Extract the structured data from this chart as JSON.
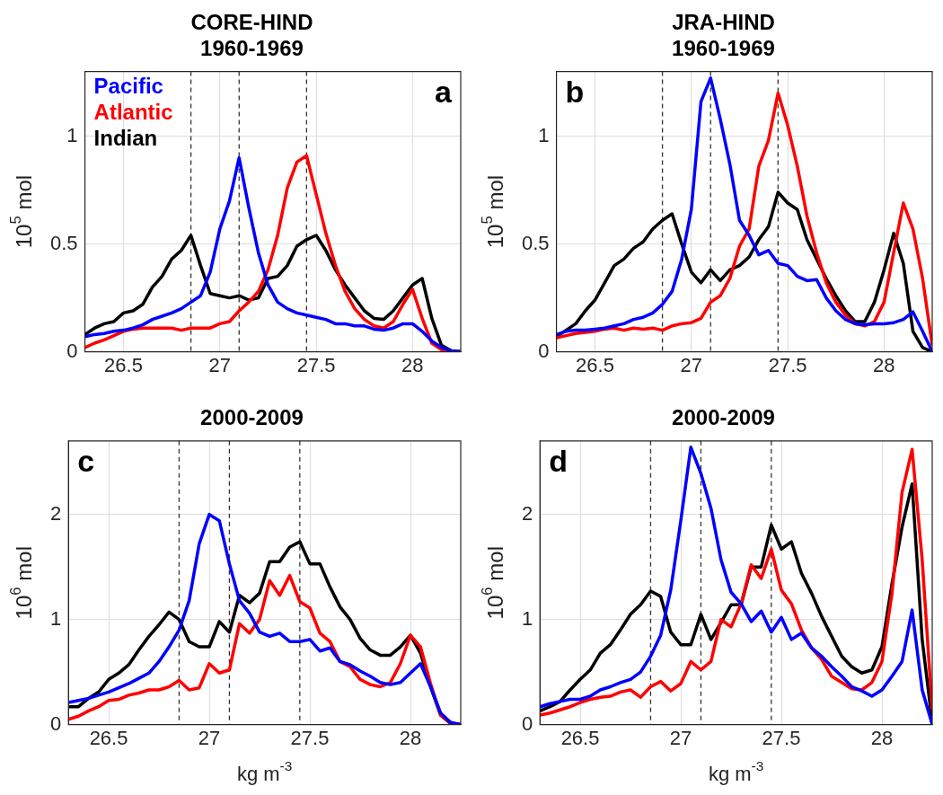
{
  "chart_data": [
    {
      "type": "line",
      "title": "CORE-HIND\n1960-1969",
      "ylabel": "10$^{5}$ mol",
      "annotations": [
        "a"
      ],
      "legend": "top left",
      "grid": true,
      "xlim": [
        26.3,
        28.25
      ],
      "xticks": [
        26.5,
        27,
        27.5,
        28
      ],
      "ylim": [
        0,
        1.3
      ],
      "yticks": [
        0,
        0.5,
        1
      ],
      "x": [
        26.3,
        26.35,
        26.4,
        26.45,
        26.5,
        26.55,
        26.6,
        26.65,
        26.7,
        26.75,
        26.8,
        26.85,
        26.9,
        26.95,
        27,
        27.05,
        27.1,
        27.15,
        27.2,
        27.25,
        27.3,
        27.35,
        27.4,
        27.45,
        27.5,
        27.55,
        27.6,
        27.65,
        27.7,
        27.75,
        27.8,
        27.85,
        27.9,
        27.95,
        28,
        28.05,
        28.1,
        28.15,
        28.2,
        28.25
      ],
      "ref_lines": [
        {
          "axis": "x",
          "value": 26.85,
          "color": "#333333",
          "line_style": "dashed"
        },
        {
          "axis": "x",
          "value": 27.1,
          "color": "#333333",
          "line_style": "dashed"
        },
        {
          "axis": "x",
          "value": 27.45,
          "color": "#333333",
          "line_style": "dashed"
        }
      ],
      "series": [
        {
          "name": "Pacific",
          "color": "#0000ff",
          "values": [
            0.07,
            0.08,
            0.085,
            0.095,
            0.1,
            0.11,
            0.125,
            0.15,
            0.165,
            0.18,
            0.2,
            0.23,
            0.26,
            0.37,
            0.57,
            0.7,
            0.9,
            0.67,
            0.46,
            0.31,
            0.23,
            0.2,
            0.18,
            0.17,
            0.16,
            0.15,
            0.13,
            0.13,
            0.12,
            0.12,
            0.105,
            0.1,
            0.11,
            0.13,
            0.13,
            0.095,
            0.05,
            0.02,
            0.005,
            0
          ]
        },
        {
          "name": "Atlantic",
          "color": "#ff0000",
          "values": [
            0.02,
            0.04,
            0.055,
            0.075,
            0.095,
            0.105,
            0.11,
            0.11,
            0.11,
            0.11,
            0.1,
            0.11,
            0.11,
            0.11,
            0.13,
            0.14,
            0.19,
            0.23,
            0.28,
            0.38,
            0.54,
            0.76,
            0.88,
            0.91,
            0.73,
            0.55,
            0.4,
            0.28,
            0.2,
            0.15,
            0.12,
            0.11,
            0.14,
            0.22,
            0.29,
            0.155,
            0.04,
            0.01,
            0,
            0
          ]
        },
        {
          "name": "Indian",
          "color": "#000000",
          "values": [
            0.08,
            0.11,
            0.13,
            0.14,
            0.18,
            0.19,
            0.22,
            0.3,
            0.35,
            0.43,
            0.47,
            0.54,
            0.4,
            0.27,
            0.26,
            0.25,
            0.26,
            0.24,
            0.25,
            0.34,
            0.35,
            0.4,
            0.49,
            0.52,
            0.54,
            0.47,
            0.38,
            0.31,
            0.25,
            0.19,
            0.155,
            0.15,
            0.19,
            0.25,
            0.31,
            0.34,
            0.155,
            0.03,
            0.005,
            0
          ]
        }
      ]
    },
    {
      "type": "line",
      "title": "JRA-HIND\n1960-1969",
      "ylabel": "10$^{5}$ mol",
      "annotations": [
        "b"
      ],
      "grid": true,
      "xlim": [
        26.3,
        28.25
      ],
      "xticks": [
        26.5,
        27,
        27.5,
        28
      ],
      "ylim": [
        0,
        1.3
      ],
      "yticks": [
        0,
        0.5,
        1
      ],
      "x": [
        26.3,
        26.35,
        26.4,
        26.45,
        26.5,
        26.55,
        26.6,
        26.65,
        26.7,
        26.75,
        26.8,
        26.85,
        26.9,
        26.95,
        27,
        27.05,
        27.1,
        27.15,
        27.2,
        27.25,
        27.3,
        27.35,
        27.4,
        27.45,
        27.5,
        27.55,
        27.6,
        27.65,
        27.7,
        27.75,
        27.8,
        27.85,
        27.9,
        27.95,
        28,
        28.05,
        28.1,
        28.15,
        28.2,
        28.25
      ],
      "ref_lines": [
        {
          "axis": "x",
          "value": 26.85,
          "color": "#333333",
          "line_style": "dashed"
        },
        {
          "axis": "x",
          "value": 27.1,
          "color": "#333333",
          "line_style": "dashed"
        },
        {
          "axis": "x",
          "value": 27.45,
          "color": "#333333",
          "line_style": "dashed"
        }
      ],
      "series": [
        {
          "color": "#0000ff",
          "values": [
            0.08,
            0.095,
            0.1,
            0.1,
            0.105,
            0.11,
            0.12,
            0.13,
            0.15,
            0.16,
            0.18,
            0.22,
            0.28,
            0.43,
            0.66,
            1.16,
            1.27,
            1.08,
            0.87,
            0.61,
            0.54,
            0.45,
            0.47,
            0.41,
            0.4,
            0.35,
            0.33,
            0.335,
            0.25,
            0.19,
            0.15,
            0.13,
            0.125,
            0.13,
            0.13,
            0.135,
            0.15,
            0.185,
            0.095,
            0
          ]
        },
        {
          "color": "#ff0000",
          "values": [
            0.065,
            0.075,
            0.085,
            0.09,
            0.095,
            0.105,
            0.11,
            0.1,
            0.11,
            0.105,
            0.11,
            0.1,
            0.12,
            0.13,
            0.135,
            0.155,
            0.23,
            0.26,
            0.34,
            0.49,
            0.57,
            0.86,
            0.98,
            1.2,
            1.05,
            0.86,
            0.63,
            0.46,
            0.32,
            0.23,
            0.17,
            0.13,
            0.12,
            0.14,
            0.23,
            0.46,
            0.69,
            0.57,
            0.34,
            0.03
          ]
        },
        {
          "color": "#000000",
          "values": [
            0.07,
            0.1,
            0.13,
            0.19,
            0.24,
            0.32,
            0.4,
            0.43,
            0.48,
            0.51,
            0.57,
            0.61,
            0.64,
            0.5,
            0.37,
            0.32,
            0.38,
            0.33,
            0.38,
            0.4,
            0.44,
            0.52,
            0.58,
            0.74,
            0.69,
            0.66,
            0.52,
            0.43,
            0.34,
            0.26,
            0.19,
            0.14,
            0.14,
            0.23,
            0.38,
            0.55,
            0.41,
            0.095,
            0.02,
            0
          ]
        }
      ]
    },
    {
      "type": "line",
      "title": "2000-2009",
      "xlabel": "kg m$^{-3}$",
      "ylabel": "10$^{6}$ mol",
      "annotations": [
        "c"
      ],
      "grid": true,
      "xlim": [
        26.3,
        28.25
      ],
      "xticks": [
        26.5,
        27,
        27.5,
        28
      ],
      "ylim": [
        0,
        2.7
      ],
      "yticks": [
        0,
        1,
        2
      ],
      "x": [
        26.3,
        26.35,
        26.4,
        26.45,
        26.5,
        26.55,
        26.6,
        26.65,
        26.7,
        26.75,
        26.8,
        26.85,
        26.9,
        26.95,
        27,
        27.05,
        27.1,
        27.15,
        27.2,
        27.25,
        27.3,
        27.35,
        27.4,
        27.45,
        27.5,
        27.55,
        27.6,
        27.65,
        27.7,
        27.75,
        27.8,
        27.85,
        27.9,
        27.95,
        28,
        28.05,
        28.1,
        28.15,
        28.2,
        28.25
      ],
      "ref_lines": [
        {
          "axis": "x",
          "value": 26.85,
          "color": "#333333",
          "line_style": "dashed"
        },
        {
          "axis": "x",
          "value": 27.1,
          "color": "#333333",
          "line_style": "dashed"
        },
        {
          "axis": "x",
          "value": 27.45,
          "color": "#333333",
          "line_style": "dashed"
        }
      ],
      "series": [
        {
          "color": "#0000ff",
          "values": [
            0.21,
            0.23,
            0.25,
            0.28,
            0.31,
            0.35,
            0.39,
            0.44,
            0.49,
            0.6,
            0.74,
            0.9,
            1.18,
            1.72,
            2.0,
            1.94,
            1.53,
            1.18,
            1.06,
            0.88,
            0.84,
            0.87,
            0.79,
            0.79,
            0.81,
            0.7,
            0.73,
            0.6,
            0.57,
            0.51,
            0.46,
            0.4,
            0.38,
            0.4,
            0.49,
            0.58,
            0.36,
            0.11,
            0.02,
            0
          ]
        },
        {
          "color": "#ff0000",
          "values": [
            0.05,
            0.08,
            0.13,
            0.17,
            0.23,
            0.24,
            0.28,
            0.3,
            0.33,
            0.33,
            0.36,
            0.42,
            0.33,
            0.35,
            0.58,
            0.49,
            0.52,
            0.96,
            0.87,
            1.0,
            1.37,
            1.23,
            1.42,
            1.17,
            1.11,
            0.87,
            0.79,
            0.6,
            0.55,
            0.43,
            0.38,
            0.36,
            0.4,
            0.58,
            0.85,
            0.74,
            0.39,
            0.09,
            0.02,
            0
          ]
        },
        {
          "color": "#000000",
          "values": [
            0.17,
            0.17,
            0.25,
            0.31,
            0.43,
            0.49,
            0.57,
            0.71,
            0.84,
            0.95,
            1.07,
            1.0,
            0.79,
            0.74,
            0.74,
            0.98,
            0.88,
            1.23,
            1.16,
            1.25,
            1.55,
            1.55,
            1.69,
            1.74,
            1.53,
            1.53,
            1.31,
            1.12,
            1.0,
            0.82,
            0.71,
            0.66,
            0.66,
            0.74,
            0.85,
            0.68,
            0.36,
            0.09,
            0.01,
            0
          ]
        }
      ]
    },
    {
      "type": "line",
      "title": "2000-2009",
      "xlabel": "kg m$^{-3}$",
      "ylabel": "10$^{6}$ mol",
      "annotations": [
        "d"
      ],
      "grid": true,
      "xlim": [
        26.3,
        28.25
      ],
      "xticks": [
        26.5,
        27,
        27.5,
        28
      ],
      "ylim": [
        0,
        2.7
      ],
      "yticks": [
        0,
        1,
        2
      ],
      "x": [
        26.3,
        26.35,
        26.4,
        26.45,
        26.5,
        26.55,
        26.6,
        26.65,
        26.7,
        26.75,
        26.8,
        26.85,
        26.9,
        26.95,
        27,
        27.05,
        27.1,
        27.15,
        27.2,
        27.25,
        27.3,
        27.35,
        27.4,
        27.45,
        27.5,
        27.55,
        27.6,
        27.65,
        27.7,
        27.75,
        27.8,
        27.85,
        27.9,
        27.95,
        28,
        28.05,
        28.1,
        28.15,
        28.2,
        28.25
      ],
      "ref_lines": [
        {
          "axis": "x",
          "value": 26.85,
          "color": "#333333",
          "line_style": "dashed"
        },
        {
          "axis": "x",
          "value": 27.1,
          "color": "#333333",
          "line_style": "dashed"
        },
        {
          "axis": "x",
          "value": 27.45,
          "color": "#333333",
          "line_style": "dashed"
        }
      ],
      "series": [
        {
          "color": "#0000ff",
          "values": [
            0.17,
            0.2,
            0.22,
            0.24,
            0.24,
            0.27,
            0.33,
            0.36,
            0.4,
            0.43,
            0.5,
            0.65,
            0.85,
            1.28,
            1.94,
            2.64,
            2.39,
            2.06,
            1.57,
            1.26,
            1.15,
            0.98,
            1.08,
            0.88,
            1.02,
            0.81,
            0.87,
            0.73,
            0.65,
            0.55,
            0.46,
            0.36,
            0.32,
            0.27,
            0.33,
            0.46,
            0.6,
            1.09,
            0.33,
            0
          ]
        },
        {
          "color": "#ff0000",
          "values": [
            0.09,
            0.11,
            0.14,
            0.17,
            0.21,
            0.24,
            0.26,
            0.27,
            0.31,
            0.33,
            0.26,
            0.36,
            0.41,
            0.32,
            0.39,
            0.6,
            0.52,
            0.6,
            1.0,
            0.93,
            1.15,
            1.52,
            1.39,
            1.67,
            1.28,
            1.15,
            0.9,
            0.73,
            0.62,
            0.46,
            0.4,
            0.34,
            0.33,
            0.4,
            0.6,
            1.25,
            2.21,
            2.62,
            1.57,
            0.14
          ]
        },
        {
          "color": "#000000",
          "values": [
            0.13,
            0.17,
            0.22,
            0.33,
            0.43,
            0.52,
            0.68,
            0.76,
            0.9,
            1.05,
            1.14,
            1.27,
            1.22,
            0.88,
            0.76,
            0.76,
            1.05,
            0.81,
            0.97,
            1.14,
            1.14,
            1.5,
            1.5,
            1.9,
            1.67,
            1.74,
            1.44,
            1.25,
            1.03,
            0.84,
            0.65,
            0.55,
            0.49,
            0.52,
            0.74,
            1.34,
            1.88,
            2.29,
            0.81,
            0.02
          ]
        }
      ]
    }
  ]
}
